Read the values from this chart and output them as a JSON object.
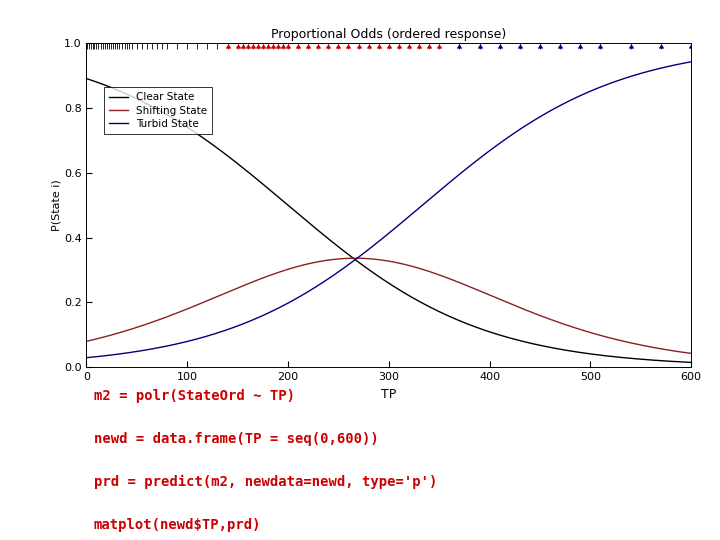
{
  "title": "Proportional Odds (ordered response)",
  "xlabel": "TP",
  "ylabel": "P(State i)",
  "xlim": [
    0,
    600
  ],
  "ylim": [
    0.0,
    1.0
  ],
  "yticks": [
    0.0,
    0.2,
    0.4,
    0.6,
    0.8,
    1.0
  ],
  "ytick_labels": [
    "0.0",
    "0.2",
    "0.4",
    "0.6",
    "0.8",
    "1.0"
  ],
  "xticks": [
    0,
    100,
    200,
    300,
    400,
    500,
    600
  ],
  "legend_labels": [
    "Clear State",
    "Shifting State",
    "Turbid State"
  ],
  "line_colors": [
    "#000000",
    "#8B2020",
    "#000080"
  ],
  "background_color": "#ffffff",
  "a1": 2.1,
  "a2": 3.5,
  "b": 0.0105,
  "rug_black": [
    0,
    1,
    3,
    5,
    7,
    8,
    10,
    12,
    14,
    16,
    18,
    20,
    22,
    24,
    26,
    28,
    30,
    32,
    35,
    38,
    40,
    42,
    45,
    50,
    55,
    60,
    65,
    70,
    75,
    80,
    90,
    100,
    110,
    120,
    130
  ],
  "rug_red": [
    140,
    150,
    155,
    160,
    165,
    170,
    175,
    180,
    185,
    190,
    195,
    200,
    210,
    220,
    230,
    240,
    250,
    260,
    270,
    280,
    290,
    300,
    310,
    320,
    330,
    340,
    350
  ],
  "rug_blue": [
    370,
    390,
    410,
    430,
    450,
    470,
    490,
    510,
    540,
    570,
    600
  ],
  "text_lines": [
    "m2 = polr(StateOrd ~ TP)",
    "newd = data.frame(TP = seq(0,600))",
    "prd = predict(m2, newdata=newd, type='p')",
    "matplot(newd$TP,prd)"
  ],
  "text_color": "#CC0000"
}
